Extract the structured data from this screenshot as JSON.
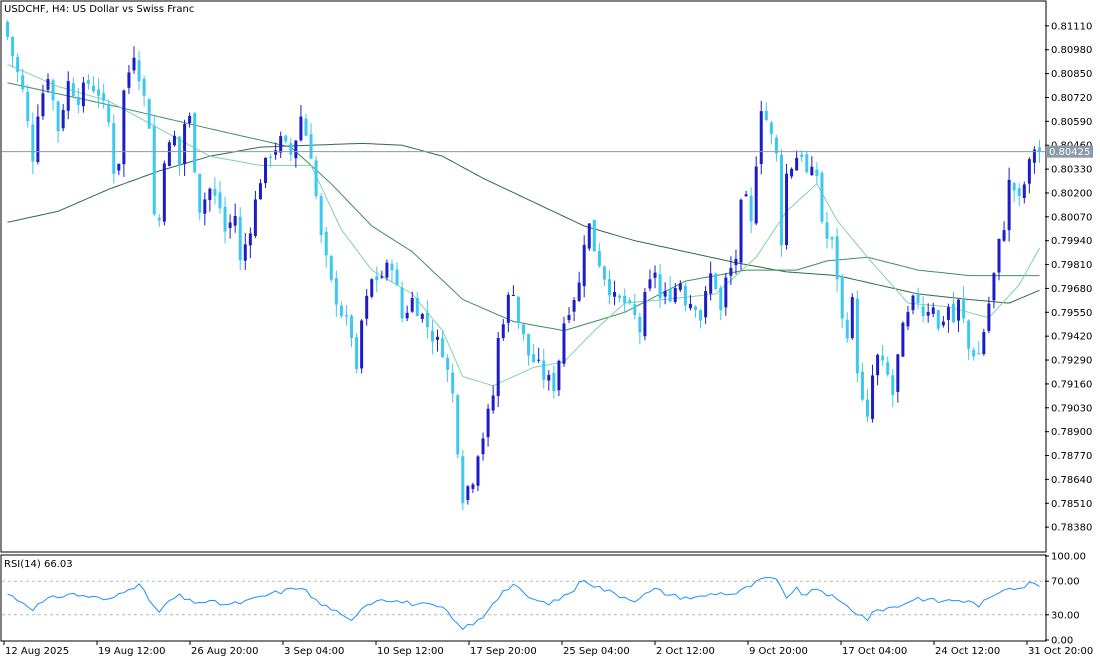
{
  "header": {
    "title": "USDCHF, H4:  US Dollar vs Swiss Franc"
  },
  "chart_data": [
    {
      "type": "candlestick",
      "symbol": "USDCHF",
      "timeframe": "H4",
      "title": "USDCHF, H4:  US Dollar vs Swiss Franc",
      "ylim": [
        0.7825,
        0.8124
      ],
      "y_ticks": [
        "0.81110",
        "0.80980",
        "0.80850",
        "0.80720",
        "0.80590",
        "0.80460",
        "0.80330",
        "0.80200",
        "0.80070",
        "0.79940",
        "0.79810",
        "0.79680",
        "0.79550",
        "0.79420",
        "0.79290",
        "0.79160",
        "0.79030",
        "0.78900",
        "0.78770",
        "0.78640",
        "0.78510",
        "0.78380"
      ],
      "x_ticks": [
        "12 Aug 2025",
        "19 Aug 12:00",
        "26 Aug 20:00",
        "3 Sep 04:00",
        "10 Sep 12:00",
        "17 Sep 20:00",
        "25 Sep 04:00",
        "2 Oct 12:00",
        "9 Oct 20:00",
        "17 Oct 04:00",
        "24 Oct 12:00",
        "31 Oct 20:00"
      ],
      "current_price": "0.80425",
      "bull_color": "#1c1cc8",
      "bear_color": "#3cc8f0",
      "close_path": [
        [
          0,
          0.8105
        ],
        [
          3,
          0.8075
        ],
        [
          5,
          0.804
        ],
        [
          6,
          0.8065
        ],
        [
          8,
          0.8085
        ],
        [
          10,
          0.8055
        ],
        [
          12,
          0.808
        ],
        [
          14,
          0.8072
        ],
        [
          16,
          0.808
        ],
        [
          18,
          0.8075
        ],
        [
          20,
          0.8058
        ],
        [
          21,
          0.8033
        ],
        [
          22,
          0.8038
        ],
        [
          23,
          0.8075
        ],
        [
          25,
          0.8097
        ],
        [
          26,
          0.8085
        ],
        [
          28,
          0.8058
        ],
        [
          29,
          0.8008
        ],
        [
          30,
          0.8005
        ],
        [
          31,
          0.804
        ],
        [
          33,
          0.805
        ],
        [
          34,
          0.8035
        ],
        [
          35,
          0.8058
        ],
        [
          36,
          0.806
        ],
        [
          37,
          0.8035
        ],
        [
          38,
          0.8012
        ],
        [
          40,
          0.8022
        ],
        [
          42,
          0.8012
        ],
        [
          43,
          0.7999
        ],
        [
          45,
          0.8008
        ],
        [
          46,
          0.7982
        ],
        [
          48,
          0.8002
        ],
        [
          50,
          0.8028
        ],
        [
          52,
          0.8042
        ],
        [
          54,
          0.8048
        ],
        [
          56,
          0.8041
        ],
        [
          57,
          0.805
        ],
        [
          58,
          0.8062
        ],
        [
          60,
          0.8042
        ],
        [
          61,
          0.8018
        ],
        [
          62,
          0.7995
        ],
        [
          64,
          0.797
        ],
        [
          66,
          0.7955
        ],
        [
          68,
          0.7943
        ],
        [
          69,
          0.792
        ],
        [
          70,
          0.795
        ],
        [
          72,
          0.7972
        ],
        [
          74,
          0.7975
        ],
        [
          76,
          0.7982
        ],
        [
          78,
          0.7952
        ],
        [
          80,
          0.7962
        ],
        [
          82,
          0.7953
        ],
        [
          84,
          0.7942
        ],
        [
          86,
          0.7935
        ],
        [
          88,
          0.791
        ],
        [
          89,
          0.7882
        ],
        [
          90,
          0.7855
        ],
        [
          92,
          0.7865
        ],
        [
          93,
          0.788
        ],
        [
          94,
          0.7888
        ],
        [
          96,
          0.791
        ],
        [
          97,
          0.794
        ],
        [
          98,
          0.7952
        ],
        [
          99,
          0.7962
        ],
        [
          100,
          0.7968
        ],
        [
          101,
          0.795
        ],
        [
          103,
          0.7932
        ],
        [
          105,
          0.7925
        ],
        [
          106,
          0.792
        ],
        [
          108,
          0.7915
        ],
        [
          109,
          0.793
        ],
        [
          110,
          0.795
        ],
        [
          111,
          0.7958
        ],
        [
          113,
          0.797
        ],
        [
          114,
          0.7995
        ],
        [
          115,
          0.8002
        ],
        [
          116,
          0.799
        ],
        [
          118,
          0.7975
        ],
        [
          120,
          0.7962
        ],
        [
          122,
          0.796
        ],
        [
          124,
          0.7952
        ],
        [
          125,
          0.7945
        ],
        [
          126,
          0.7962
        ],
        [
          128,
          0.7978
        ],
        [
          129,
          0.7962
        ],
        [
          131,
          0.7965
        ],
        [
          133,
          0.7972
        ],
        [
          134,
          0.7962
        ],
        [
          136,
          0.796
        ],
        [
          137,
          0.7952
        ],
        [
          139,
          0.7975
        ],
        [
          140,
          0.797
        ],
        [
          141,
          0.7955
        ],
        [
          142,
          0.7972
        ],
        [
          144,
          0.7985
        ],
        [
          145,
          0.8012
        ],
        [
          146,
          0.8015
        ],
        [
          147,
          0.8002
        ],
        [
          148,
          0.8038
        ],
        [
          149,
          0.8068
        ],
        [
          150,
          0.806
        ],
        [
          151,
          0.805
        ],
        [
          152,
          0.804
        ],
        [
          153,
          0.7995
        ],
        [
          154,
          0.803
        ],
        [
          156,
          0.804
        ],
        [
          157,
          0.8042
        ],
        [
          158,
          0.803
        ],
        [
          160,
          0.803
        ],
        [
          161,
          0.8005
        ],
        [
          162,
          0.7995
        ],
        [
          163,
          0.7992
        ],
        [
          164,
          0.7975
        ],
        [
          165,
          0.795
        ],
        [
          166,
          0.7945
        ],
        [
          167,
          0.796
        ],
        [
          168,
          0.7925
        ],
        [
          169,
          0.7905
        ],
        [
          170,
          0.7895
        ],
        [
          171,
          0.792
        ],
        [
          172,
          0.793
        ],
        [
          174,
          0.792
        ],
        [
          175,
          0.791
        ],
        [
          176,
          0.793
        ],
        [
          177,
          0.7945
        ],
        [
          179,
          0.796
        ],
        [
          180,
          0.7962
        ],
        [
          181,
          0.7955
        ],
        [
          183,
          0.796
        ],
        [
          184,
          0.7945
        ],
        [
          185,
          0.7952
        ],
        [
          186,
          0.7958
        ],
        [
          187,
          0.795
        ],
        [
          188,
          0.796
        ],
        [
          189,
          0.795
        ],
        [
          190,
          0.7935
        ],
        [
          192,
          0.7932
        ],
        [
          193,
          0.7945
        ],
        [
          194,
          0.796
        ],
        [
          195,
          0.7975
        ],
        [
          196,
          0.7992
        ],
        [
          197,
          0.8003
        ],
        [
          198,
          0.8025
        ],
        [
          199,
          0.8022
        ],
        [
          200,
          0.8015
        ],
        [
          201,
          0.8025
        ],
        [
          202,
          0.8035
        ],
        [
          203,
          0.8045
        ],
        [
          204,
          0.8043
        ]
      ],
      "ma_fast_path": [
        [
          0,
          0.809
        ],
        [
          10,
          0.8078
        ],
        [
          20,
          0.807
        ],
        [
          30,
          0.8055
        ],
        [
          40,
          0.804
        ],
        [
          50,
          0.8035
        ],
        [
          60,
          0.8035
        ],
        [
          66,
          0.8
        ],
        [
          72,
          0.7978
        ],
        [
          80,
          0.7965
        ],
        [
          86,
          0.7945
        ],
        [
          90,
          0.792
        ],
        [
          96,
          0.7915
        ],
        [
          104,
          0.7925
        ],
        [
          110,
          0.7928
        ],
        [
          116,
          0.7945
        ],
        [
          122,
          0.796
        ],
        [
          130,
          0.7962
        ],
        [
          140,
          0.7965
        ],
        [
          148,
          0.7985
        ],
        [
          154,
          0.801
        ],
        [
          160,
          0.8025
        ],
        [
          164,
          0.8005
        ],
        [
          170,
          0.7985
        ],
        [
          178,
          0.796
        ],
        [
          186,
          0.7958
        ],
        [
          194,
          0.7952
        ],
        [
          200,
          0.797
        ],
        [
          204,
          0.799
        ]
      ],
      "ma_mid_path": [
        [
          0,
          0.808
        ],
        [
          20,
          0.8068
        ],
        [
          40,
          0.8055
        ],
        [
          56,
          0.8045
        ],
        [
          64,
          0.8025
        ],
        [
          72,
          0.8002
        ],
        [
          80,
          0.7988
        ],
        [
          90,
          0.7962
        ],
        [
          100,
          0.795
        ],
        [
          110,
          0.7945
        ],
        [
          122,
          0.7955
        ],
        [
          134,
          0.7972
        ],
        [
          146,
          0.7978
        ],
        [
          156,
          0.7978
        ],
        [
          162,
          0.7983
        ],
        [
          170,
          0.7985
        ],
        [
          180,
          0.7978
        ],
        [
          190,
          0.7975
        ],
        [
          204,
          0.7975
        ]
      ],
      "ma_slow_path": [
        [
          0,
          0.8004
        ],
        [
          10,
          0.801
        ],
        [
          20,
          0.8022
        ],
        [
          30,
          0.8032
        ],
        [
          40,
          0.804
        ],
        [
          50,
          0.8045
        ],
        [
          60,
          0.8046
        ],
        [
          70,
          0.8047
        ],
        [
          78,
          0.8046
        ],
        [
          86,
          0.804
        ],
        [
          94,
          0.8028
        ],
        [
          104,
          0.8015
        ],
        [
          114,
          0.8002
        ],
        [
          124,
          0.7994
        ],
        [
          134,
          0.7988
        ],
        [
          144,
          0.7982
        ],
        [
          154,
          0.7977
        ],
        [
          164,
          0.7975
        ],
        [
          172,
          0.797
        ],
        [
          180,
          0.7965
        ],
        [
          190,
          0.7962
        ],
        [
          198,
          0.796
        ],
        [
          204,
          0.7967
        ]
      ]
    },
    {
      "type": "line",
      "title": "RSI(14) 66.03",
      "ylim": [
        0,
        100
      ],
      "y_ticks": [
        "100.00",
        "70.00",
        "30.00",
        "0.00"
      ],
      "levels": [
        70,
        30
      ],
      "line_color": "#1e90ff",
      "path": [
        [
          0,
          55
        ],
        [
          3,
          45
        ],
        [
          5,
          38
        ],
        [
          8,
          48
        ],
        [
          12,
          55
        ],
        [
          16,
          52
        ],
        [
          20,
          47
        ],
        [
          24,
          63
        ],
        [
          26,
          65
        ],
        [
          28,
          48
        ],
        [
          30,
          32
        ],
        [
          32,
          47
        ],
        [
          34,
          52
        ],
        [
          36,
          46
        ],
        [
          40,
          45
        ],
        [
          44,
          42
        ],
        [
          48,
          47
        ],
        [
          52,
          55
        ],
        [
          56,
          60
        ],
        [
          58,
          64
        ],
        [
          60,
          52
        ],
        [
          62,
          42
        ],
        [
          64,
          38
        ],
        [
          66,
          28
        ],
        [
          68,
          22
        ],
        [
          70,
          40
        ],
        [
          74,
          50
        ],
        [
          78,
          45
        ],
        [
          82,
          42
        ],
        [
          86,
          38
        ],
        [
          88,
          25
        ],
        [
          89,
          18
        ],
        [
          90,
          15
        ],
        [
          92,
          18
        ],
        [
          94,
          28
        ],
        [
          96,
          45
        ],
        [
          98,
          58
        ],
        [
          100,
          66
        ],
        [
          102,
          55
        ],
        [
          104,
          48
        ],
        [
          106,
          44
        ],
        [
          108,
          45
        ],
        [
          112,
          60
        ],
        [
          114,
          73
        ],
        [
          116,
          65
        ],
        [
          120,
          55
        ],
        [
          124,
          48
        ],
        [
          128,
          60
        ],
        [
          132,
          52
        ],
        [
          136,
          50
        ],
        [
          140,
          56
        ],
        [
          144,
          55
        ],
        [
          148,
          68
        ],
        [
          150,
          74
        ],
        [
          152,
          70
        ],
        [
          154,
          52
        ],
        [
          156,
          60
        ],
        [
          158,
          52
        ],
        [
          160,
          62
        ],
        [
          162,
          55
        ],
        [
          164,
          47
        ],
        [
          166,
          40
        ],
        [
          168,
          32
        ],
        [
          170,
          25
        ],
        [
          172,
          36
        ],
        [
          176,
          40
        ],
        [
          178,
          46
        ],
        [
          180,
          50
        ],
        [
          184,
          46
        ],
        [
          188,
          48
        ],
        [
          192,
          42
        ],
        [
          194,
          48
        ],
        [
          196,
          58
        ],
        [
          198,
          64
        ],
        [
          200,
          62
        ],
        [
          202,
          67
        ],
        [
          204,
          66
        ]
      ]
    }
  ]
}
